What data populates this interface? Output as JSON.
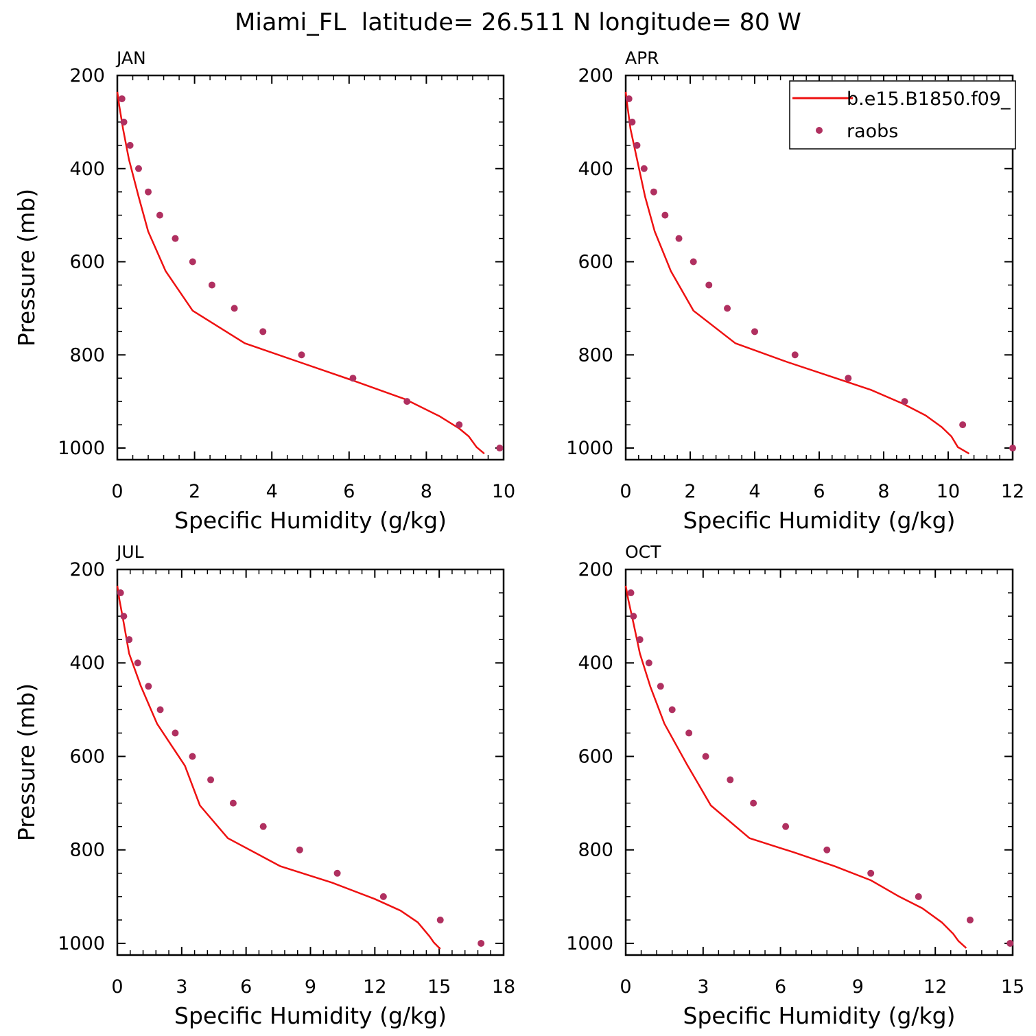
{
  "figure_title": "Miami_FL  latitude= 26.511 N longitude= 80 W",
  "legend": {
    "model_label": "b.e15.B1850.f09_",
    "obs_label": "raobs",
    "placement": "top-right of APR panel"
  },
  "colors": {
    "model_line": "#ee1111",
    "obs_marker": "#b03060",
    "axes": "#000000"
  },
  "chart_data": [
    {
      "type": "line",
      "title": "JAN",
      "xlabel": "Specific Humidity (g/kg)",
      "ylabel": "Pressure (mb)",
      "xlim": [
        0,
        10
      ],
      "ylim": [
        1025,
        200
      ],
      "xticks": [
        0,
        2,
        4,
        6,
        8,
        10
      ],
      "xtick_labels": [
        "0",
        "2",
        "4",
        "6",
        "8",
        "10"
      ],
      "yticks": [
        200,
        400,
        600,
        800,
        1000
      ],
      "ytick_labels": [
        "200",
        "400",
        "600",
        "800",
        "1000"
      ],
      "model": {
        "name": "b.e15.B1850.f09_",
        "x": [
          0.0,
          0.05,
          0.15,
          0.3,
          0.55,
          0.8,
          1.25,
          1.95,
          3.3,
          4.7,
          6.1,
          7.45,
          8.35,
          8.85,
          9.1,
          9.3,
          9.5
        ],
        "y": [
          235,
          265,
          315,
          380,
          460,
          535,
          620,
          705,
          775,
          815,
          855,
          895,
          932,
          958,
          975,
          998,
          1012
        ]
      },
      "obs": {
        "name": "raobs",
        "x": [
          0.12,
          0.17,
          0.33,
          0.55,
          0.8,
          1.1,
          1.5,
          1.95,
          2.45,
          3.03,
          3.77,
          4.77,
          6.1,
          7.5,
          8.85,
          9.9
        ],
        "y": [
          250,
          300,
          350,
          400,
          450,
          500,
          550,
          600,
          650,
          700,
          750,
          800,
          850,
          900,
          950,
          1000
        ]
      }
    },
    {
      "type": "line",
      "title": "APR",
      "xlabel": "Specific Humidity (g/kg)",
      "ylabel": "",
      "xlim": [
        0,
        12
      ],
      "ylim": [
        1025,
        200
      ],
      "xticks": [
        0,
        2,
        4,
        6,
        8,
        10,
        12
      ],
      "xtick_labels": [
        "0",
        "2",
        "4",
        "6",
        "8",
        "10",
        "12"
      ],
      "yticks": [
        200,
        400,
        600,
        800,
        1000
      ],
      "ytick_labels": [
        "200",
        "400",
        "600",
        "800",
        "1000"
      ],
      "model": {
        "name": "b.e15.B1850.f09_",
        "x": [
          0.0,
          0.05,
          0.15,
          0.35,
          0.6,
          0.9,
          1.4,
          2.1,
          3.4,
          5.0,
          6.3,
          7.6,
          8.6,
          9.3,
          9.8,
          10.1,
          10.3,
          10.65
        ],
        "y": [
          235,
          265,
          315,
          380,
          460,
          535,
          620,
          705,
          775,
          815,
          845,
          875,
          905,
          930,
          955,
          975,
          998,
          1012
        ]
      },
      "obs": {
        "name": "raobs",
        "x": [
          0.1,
          0.2,
          0.35,
          0.57,
          0.87,
          1.22,
          1.65,
          2.1,
          2.58,
          3.15,
          4.0,
          5.25,
          6.9,
          8.65,
          10.45,
          12.0
        ],
        "y": [
          250,
          300,
          350,
          400,
          450,
          500,
          550,
          600,
          650,
          700,
          750,
          800,
          850,
          900,
          950,
          1000
        ]
      }
    },
    {
      "type": "line",
      "title": "JUL",
      "xlabel": "Specific Humidity (g/kg)",
      "ylabel": "Pressure (mb)",
      "xlim": [
        0,
        18
      ],
      "ylim": [
        1025,
        200
      ],
      "xticks": [
        0,
        3,
        6,
        9,
        12,
        15,
        18
      ],
      "xtick_labels": [
        "0",
        "3",
        "6",
        "9",
        "12",
        "15",
        "18"
      ],
      "yticks": [
        200,
        400,
        600,
        800,
        1000
      ],
      "ytick_labels": [
        "200",
        "400",
        "600",
        "800",
        "1000"
      ],
      "model": {
        "name": "b.e15.B1850.f09_",
        "x": [
          0.0,
          0.1,
          0.3,
          0.55,
          1.1,
          1.85,
          3.15,
          3.85,
          5.15,
          7.6,
          10.0,
          12.0,
          13.2,
          14.0,
          14.55,
          14.75,
          15.05
        ],
        "y": [
          235,
          265,
          315,
          380,
          450,
          530,
          620,
          705,
          775,
          835,
          870,
          905,
          930,
          955,
          985,
          998,
          1012
        ]
      },
      "obs": {
        "name": "raobs",
        "x": [
          0.15,
          0.3,
          0.55,
          0.95,
          1.45,
          2.0,
          2.7,
          3.5,
          4.35,
          5.4,
          6.8,
          8.5,
          10.25,
          12.4,
          15.05,
          16.95
        ],
        "y": [
          250,
          300,
          350,
          400,
          450,
          500,
          550,
          600,
          650,
          700,
          750,
          800,
          850,
          900,
          950,
          1000
        ]
      }
    },
    {
      "type": "line",
      "title": "OCT",
      "xlabel": "Specific Humidity (g/kg)",
      "ylabel": "",
      "xlim": [
        0,
        15
      ],
      "ylim": [
        1025,
        200
      ],
      "xticks": [
        0,
        3,
        6,
        9,
        12,
        15
      ],
      "xtick_labels": [
        "0",
        "3",
        "6",
        "9",
        "12",
        "15"
      ],
      "yticks": [
        200,
        400,
        600,
        800,
        1000
      ],
      "ytick_labels": [
        "200",
        "400",
        "600",
        "800",
        "1000"
      ],
      "model": {
        "name": "b.e15.B1850.f09_",
        "x": [
          0.0,
          0.1,
          0.3,
          0.55,
          0.95,
          1.5,
          2.35,
          3.3,
          4.8,
          6.5,
          8.1,
          9.5,
          10.6,
          11.5,
          12.25,
          12.7,
          12.9,
          13.2
        ],
        "y": [
          235,
          265,
          315,
          380,
          450,
          530,
          615,
          705,
          775,
          805,
          835,
          865,
          900,
          925,
          955,
          980,
          995,
          1010
        ]
      },
      "obs": {
        "name": "raobs",
        "x": [
          0.2,
          0.3,
          0.55,
          0.9,
          1.35,
          1.8,
          2.45,
          3.1,
          4.05,
          4.95,
          6.2,
          7.8,
          9.5,
          11.35,
          13.35,
          14.9
        ],
        "y": [
          250,
          300,
          350,
          400,
          450,
          500,
          550,
          600,
          650,
          700,
          750,
          800,
          850,
          900,
          950,
          1000
        ]
      }
    }
  ]
}
